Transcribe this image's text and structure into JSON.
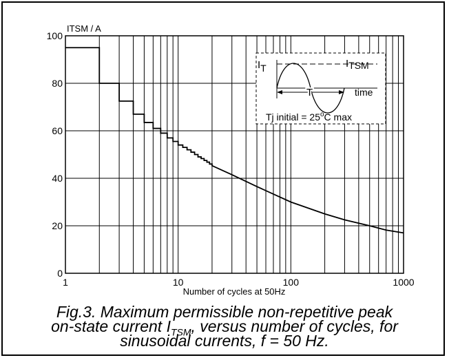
{
  "chart_data": {
    "type": "line",
    "ylabel": "ITSM / A",
    "xlabel": "Number of cycles at 50Hz",
    "x_scale": "log",
    "xlim": [
      1,
      1000
    ],
    "ylim": [
      0,
      100
    ],
    "x_ticks": [
      1,
      10,
      100,
      1000
    ],
    "y_ticks": [
      0,
      20,
      40,
      60,
      80,
      100
    ],
    "grid": true,
    "series": [
      {
        "steps": [
          [
            1,
            95
          ],
          [
            2,
            80
          ],
          [
            3,
            72.5
          ],
          [
            4,
            67
          ],
          [
            5,
            63.5
          ],
          [
            6,
            61
          ],
          [
            7,
            59
          ],
          [
            8,
            57
          ],
          [
            9,
            55.5
          ],
          [
            10,
            54
          ],
          [
            11,
            53
          ],
          [
            12,
            52
          ],
          [
            13,
            51
          ],
          [
            14,
            50
          ],
          [
            15,
            49
          ],
          [
            16,
            48.3
          ],
          [
            17,
            47.5
          ],
          [
            18,
            46.8
          ],
          [
            19,
            46
          ],
          [
            20,
            45.3
          ]
        ],
        "curve": [
          [
            20,
            45.3
          ],
          [
            30,
            41.5
          ],
          [
            50,
            36.5
          ],
          [
            100,
            30
          ],
          [
            200,
            25
          ],
          [
            300,
            22.5
          ],
          [
            500,
            20
          ],
          [
            700,
            18.2
          ],
          [
            1000,
            17
          ]
        ]
      }
    ],
    "inset": {
      "it_label": "I",
      "it_sub": "T",
      "itsm_label": "I",
      "itsm_sub": "TSM",
      "period_label": "T",
      "time_label": "time",
      "note_prefix": "Tj initial = 25",
      "note_sup": "o",
      "note_suffix": "C max"
    }
  },
  "caption": {
    "line1": "Fig.3.   Maximum permissible non-repetitive peak",
    "line2_pre": "on-state current I",
    "line2_sub": "TSM",
    "line2_post": ", versus number of cycles, for",
    "line3": "sinusoidal currents, f = 50 Hz."
  }
}
